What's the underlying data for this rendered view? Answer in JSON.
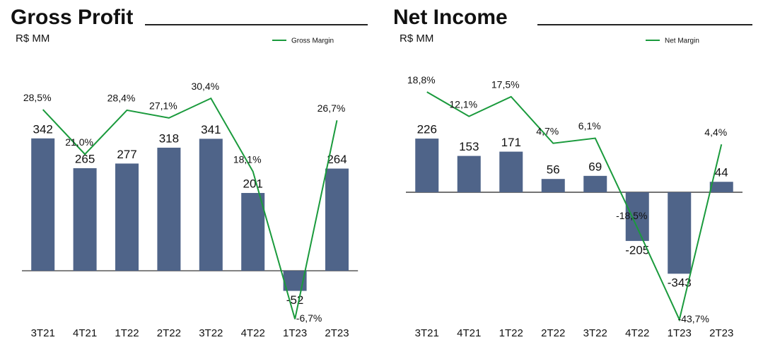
{
  "chart_data": [
    {
      "type": "combo",
      "title": "Gross Profit",
      "subtitle": "R$ MM",
      "categories": [
        "3T21",
        "4T21",
        "1T22",
        "2T22",
        "3T22",
        "4T22",
        "1T23",
        "2T23"
      ],
      "series": [
        {
          "color": "#4f6489",
          "values": [
            342,
            265,
            277,
            318,
            341,
            201,
            -52,
            264
          ]
        },
        {
          "name": "Gross Margin",
          "color": "#1a9a3c",
          "axis": "y2",
          "values": [
            28.5,
            21.0,
            28.4,
            27.1,
            30.4,
            18.1,
            -6.7,
            26.7
          ],
          "value_labels": [
            "28,5%",
            "21,0%",
            "28,4%",
            "27,1%",
            "30,4%",
            "18,1%",
            "-6,7%",
            "26,7%"
          ]
        }
      ],
      "ylim": [
        -177,
        590
      ],
      "y2lim": [
        -10.1,
        39.8
      ]
    },
    {
      "type": "combo",
      "title": "Net Income",
      "subtitle": "R$ MM",
      "categories": [
        "3T21",
        "4T21",
        "1T22",
        "2T22",
        "3T22",
        "4T22",
        "1T23",
        "2T23"
      ],
      "series": [
        {
          "color": "#4f6489",
          "values": [
            226,
            153,
            171,
            56,
            69,
            -205,
            -343,
            44
          ]
        },
        {
          "name": "Net Margin",
          "color": "#1a9a3c",
          "axis": "y2",
          "values": [
            18.8,
            12.1,
            17.5,
            4.7,
            6.1,
            -18.5,
            -43.7,
            4.4
          ],
          "value_labels": [
            "18,8%",
            "12,1%",
            "17,5%",
            "4,7%",
            "6,1%",
            "-18,5%",
            "-43,7%",
            "4,4%"
          ]
        }
      ],
      "ylim": [
        -619,
        631
      ],
      "y2lim": [
        -49.1,
        32.4
      ]
    }
  ]
}
